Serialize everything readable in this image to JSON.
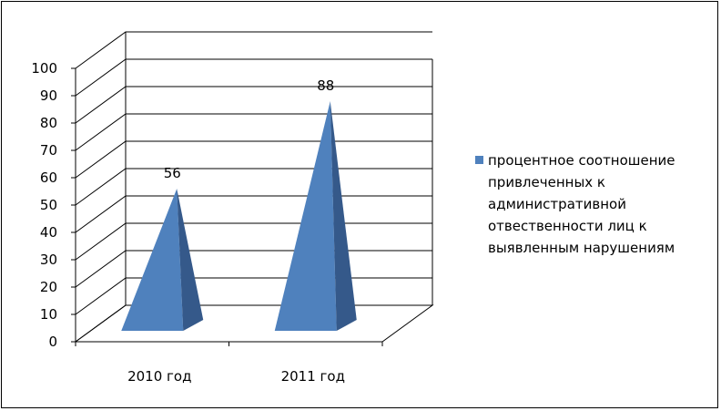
{
  "chart_data": {
    "type": "bar",
    "bar_shape": "pyramid-3d",
    "categories": [
      "2010 год",
      "2011 год"
    ],
    "series": [
      {
        "name": "процентное соотношение привлеченных к административной отвественности лиц к выявленным нарушениям",
        "values": [
          56,
          88
        ],
        "color": "#4F81BD"
      }
    ],
    "data_labels": [
      "56",
      "88"
    ],
    "ylim": [
      0,
      100
    ],
    "y_ticks": [
      0,
      10,
      20,
      30,
      40,
      50,
      60,
      70,
      80,
      90,
      100
    ],
    "grid": true,
    "legend_position": "right",
    "legend_lines": [
      "процентное соотношение",
      "привлеченных к",
      "административной",
      "отвественности лиц к",
      "выявленным нарушениям"
    ]
  }
}
